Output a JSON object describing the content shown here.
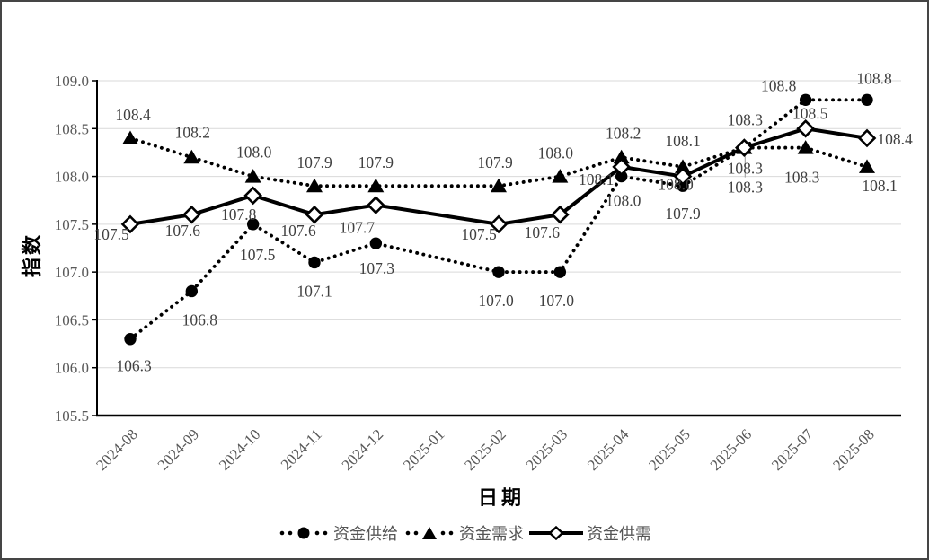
{
  "chart_data": {
    "type": "line",
    "title": "",
    "xlabel": "日期",
    "ylabel": "指数",
    "ylim": [
      105.5,
      109.0
    ],
    "ytick_step": 0.5,
    "grid": "horizontal",
    "legend_position": "bottom",
    "categories": [
      "2024-08",
      "2024-09",
      "2024-10",
      "2024-11",
      "2024-12",
      "2025-01",
      "2025-02",
      "2025-03",
      "2025-04",
      "2025-05",
      "2025-06",
      "2025-07",
      "2025-08"
    ],
    "series": [
      {
        "name": "资金供给",
        "marker": "filled-circle",
        "line": "dotted",
        "color": "#000000",
        "values": [
          106.3,
          106.8,
          107.5,
          107.1,
          107.3,
          null,
          107.0,
          107.0,
          108.0,
          107.9,
          108.3,
          108.8,
          108.8
        ]
      },
      {
        "name": "资金需求",
        "marker": "filled-triangle",
        "line": "dotted",
        "color": "#000000",
        "values": [
          108.4,
          108.2,
          108.0,
          107.9,
          107.9,
          null,
          107.9,
          108.0,
          108.2,
          108.1,
          108.3,
          108.3,
          108.1
        ]
      },
      {
        "name": "资金供需",
        "marker": "open-diamond",
        "line": "solid",
        "color": "#000000",
        "values": [
          107.5,
          107.6,
          107.8,
          107.6,
          107.7,
          null,
          107.5,
          107.6,
          108.1,
          108.0,
          108.3,
          108.5,
          108.4
        ]
      }
    ],
    "colors": {
      "grid": "#d9d9d9",
      "axis": "#000000",
      "tick_label": "#595959",
      "data_label": "#404040",
      "leader_line": "#a6a6a6"
    }
  }
}
